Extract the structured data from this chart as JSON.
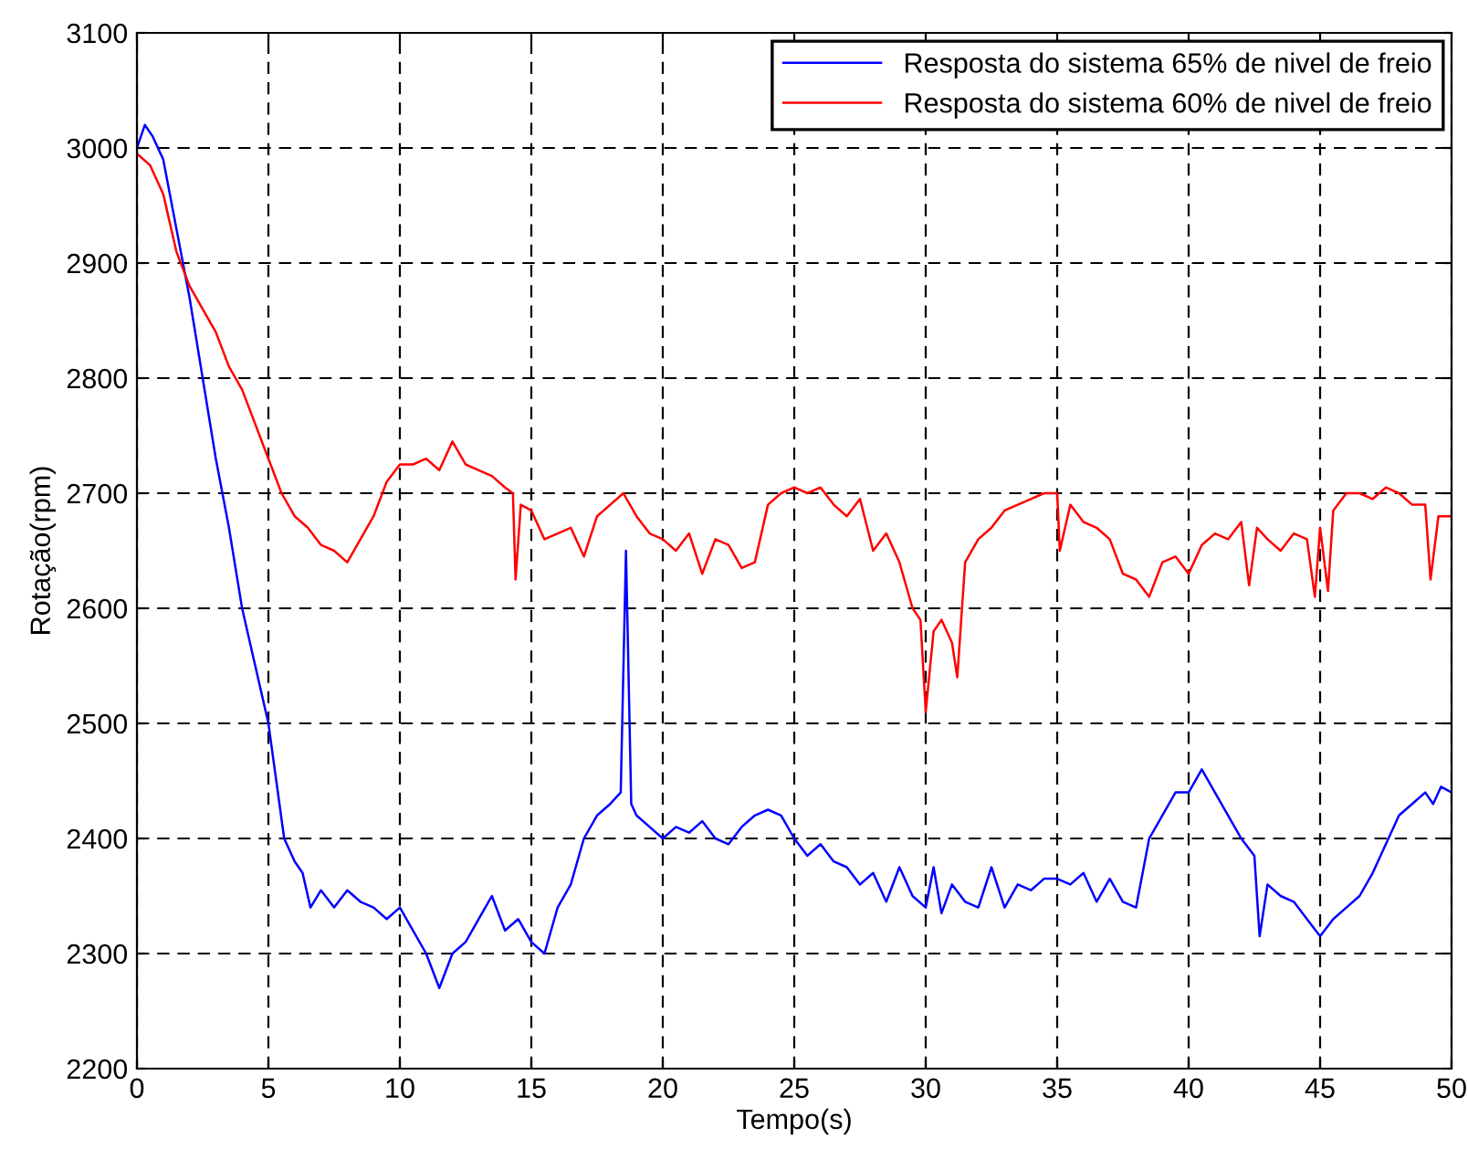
{
  "chart_data": {
    "type": "line",
    "xlabel": "Tempo(s)",
    "ylabel": "Rotação(rpm)",
    "xlim": [
      0,
      50
    ],
    "xticks": [
      0,
      5,
      10,
      15,
      20,
      25,
      30,
      35,
      40,
      45,
      50
    ],
    "ylim": [
      2200,
      3100
    ],
    "yticks": [
      2200,
      2300,
      2400,
      2500,
      2600,
      2700,
      2800,
      2900,
      3000,
      3100
    ],
    "grid": true,
    "legend": "top right",
    "line_style": "solid",
    "marker": "none",
    "series": [
      {
        "name": "Resposta do sistema 65% de nivel de freio",
        "color": "#0000ff",
        "x": [
          0,
          0.3,
          0.6,
          1,
          1.5,
          2,
          2.5,
          3,
          3.5,
          4,
          4.5,
          5,
          5.3,
          5.6,
          6,
          6.3,
          6.6,
          7,
          7.5,
          8,
          8.5,
          9,
          9.5,
          10,
          10.5,
          11,
          11.5,
          12,
          12.5,
          13,
          13.5,
          14,
          14.5,
          15,
          15.5,
          16,
          16.5,
          17,
          17.5,
          18,
          18.4,
          18.6,
          18.8,
          19,
          19.5,
          20,
          20.5,
          21,
          21.5,
          22,
          22.5,
          23,
          23.5,
          24,
          24.5,
          25,
          25.5,
          26,
          26.5,
          27,
          27.5,
          28,
          28.5,
          29,
          29.5,
          30,
          30.3,
          30.6,
          31,
          31.5,
          32,
          32.5,
          33,
          33.5,
          34,
          34.5,
          35,
          35.5,
          36,
          36.5,
          37,
          37.5,
          38,
          38.5,
          39,
          39.5,
          40,
          40.5,
          41,
          41.5,
          42,
          42.5,
          42.7,
          43,
          43.5,
          44,
          44.5,
          45,
          45.5,
          46,
          46.5,
          47,
          47.5,
          48,
          48.5,
          49,
          49.3,
          49.6,
          50
        ],
        "values": [
          3000,
          3020,
          3010,
          2990,
          2930,
          2870,
          2800,
          2730,
          2670,
          2600,
          2550,
          2500,
          2450,
          2400,
          2380,
          2370,
          2340,
          2355,
          2340,
          2355,
          2345,
          2340,
          2330,
          2340,
          2320,
          2300,
          2270,
          2300,
          2310,
          2330,
          2350,
          2320,
          2330,
          2310,
          2300,
          2340,
          2360,
          2400,
          2420,
          2430,
          2440,
          2650,
          2430,
          2420,
          2410,
          2400,
          2410,
          2405,
          2415,
          2400,
          2395,
          2410,
          2420,
          2425,
          2420,
          2400,
          2385,
          2395,
          2380,
          2375,
          2360,
          2370,
          2345,
          2375,
          2350,
          2340,
          2375,
          2335,
          2360,
          2345,
          2340,
          2375,
          2340,
          2360,
          2355,
          2365,
          2365,
          2360,
          2370,
          2345,
          2365,
          2345,
          2340,
          2400,
          2420,
          2440,
          2440,
          2460,
          2440,
          2420,
          2400,
          2385,
          2315,
          2360,
          2350,
          2345,
          2330,
          2315,
          2330,
          2340,
          2350,
          2370,
          2395,
          2420,
          2430,
          2440,
          2430,
          2445,
          2440
        ]
      },
      {
        "name": "Resposta do sistema 60% de nivel de freio",
        "color": "#ff0000",
        "x": [
          0,
          0.5,
          1,
          1.5,
          2,
          2.5,
          3,
          3.5,
          4,
          4.5,
          5,
          5.5,
          6,
          6.5,
          7,
          7.5,
          8,
          8.5,
          9,
          9.5,
          10,
          10.5,
          11,
          11.5,
          12,
          12.5,
          13,
          13.5,
          14,
          14.3,
          14.4,
          14.6,
          15,
          15.5,
          16,
          16.5,
          17,
          17.5,
          18,
          18.5,
          19,
          19.5,
          20,
          20.5,
          21,
          21.5,
          22,
          22.5,
          23,
          23.5,
          24,
          24.5,
          25,
          25.5,
          26,
          26.5,
          27,
          27.5,
          28,
          28.5,
          29,
          29.5,
          29.8,
          30,
          30.3,
          30.6,
          31,
          31.2,
          31.5,
          32,
          32.5,
          33,
          33.5,
          34,
          34.5,
          35,
          35.1,
          35.5,
          36,
          36.5,
          37,
          37.5,
          38,
          38.5,
          39,
          39.5,
          40,
          40.5,
          41,
          41.5,
          42,
          42.3,
          42.6,
          43,
          43.5,
          44,
          44.5,
          44.8,
          45,
          45.3,
          45.5,
          46,
          46.5,
          47,
          47.5,
          48,
          48.5,
          49,
          49.2,
          49.5,
          50
        ],
        "values": [
          2995,
          2985,
          2960,
          2910,
          2880,
          2860,
          2840,
          2810,
          2790,
          2760,
          2730,
          2700,
          2680,
          2670,
          2655,
          2650,
          2640,
          2660,
          2680,
          2710,
          2725,
          2725,
          2730,
          2720,
          2745,
          2725,
          2720,
          2715,
          2705,
          2700,
          2625,
          2690,
          2685,
          2660,
          2665,
          2670,
          2645,
          2680,
          2690,
          2700,
          2680,
          2665,
          2660,
          2650,
          2665,
          2630,
          2660,
          2655,
          2635,
          2640,
          2690,
          2700,
          2705,
          2700,
          2705,
          2690,
          2680,
          2695,
          2650,
          2665,
          2640,
          2600,
          2590,
          2510,
          2580,
          2590,
          2570,
          2540,
          2640,
          2660,
          2670,
          2685,
          2690,
          2695,
          2700,
          2700,
          2650,
          2690,
          2675,
          2670,
          2660,
          2630,
          2625,
          2610,
          2640,
          2645,
          2630,
          2655,
          2665,
          2660,
          2675,
          2620,
          2670,
          2660,
          2650,
          2665,
          2660,
          2610,
          2670,
          2615,
          2685,
          2700,
          2700,
          2695,
          2705,
          2700,
          2690,
          2690,
          2625,
          2680,
          2680
        ]
      }
    ]
  }
}
